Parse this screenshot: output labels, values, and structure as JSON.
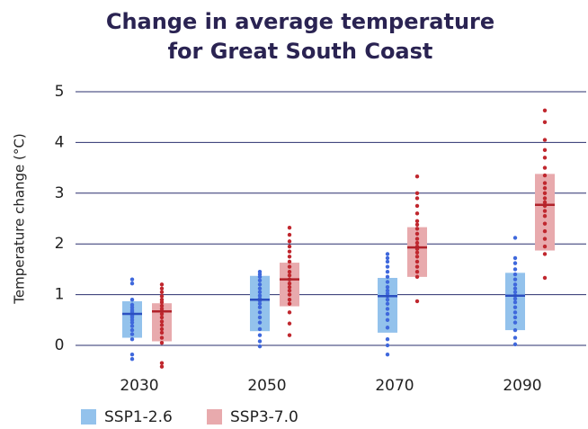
{
  "chart_data": {
    "type": "range",
    "title": "Change in average temperature",
    "subtitle": "for Great South Coast",
    "y_label": "Temperature change (°C)",
    "categories": [
      "2030",
      "2050",
      "2070",
      "2090"
    ],
    "ylim": [
      0,
      5
    ],
    "yticks": [
      0,
      1,
      2,
      3,
      4,
      5
    ],
    "grid": true,
    "legend": "bottom-left",
    "series": [
      {
        "name": "SSP1-2.6",
        "color": "#93c2ec",
        "median_color": "#2b4fc0",
        "point_color": "#3f68dc",
        "low": [
          0.15,
          0.28,
          0.25,
          0.3
        ],
        "high": [
          0.87,
          1.37,
          1.33,
          1.43
        ],
        "median": [
          0.62,
          0.9,
          0.97,
          0.98
        ],
        "points": [
          [
            -0.27,
            -0.18,
            0.12,
            0.22,
            0.3,
            0.38,
            0.45,
            0.5,
            0.55,
            0.58,
            0.6,
            0.62,
            0.64,
            0.67,
            0.7,
            0.75,
            0.8,
            0.9,
            1.22,
            1.3
          ],
          [
            -0.02,
            0.08,
            0.2,
            0.32,
            0.45,
            0.55,
            0.65,
            0.75,
            0.82,
            0.88,
            0.92,
            0.98,
            1.05,
            1.12,
            1.2,
            1.28,
            1.35,
            1.4,
            1.45
          ],
          [
            -0.18,
            0.0,
            0.12,
            0.35,
            0.5,
            0.62,
            0.72,
            0.82,
            0.9,
            0.97,
            1.02,
            1.08,
            1.15,
            1.25,
            1.35,
            1.45,
            1.55,
            1.65,
            1.72,
            1.8
          ],
          [
            0.02,
            0.15,
            0.3,
            0.45,
            0.55,
            0.65,
            0.75,
            0.85,
            0.92,
            0.98,
            1.05,
            1.12,
            1.2,
            1.3,
            1.4,
            1.5,
            1.62,
            1.72,
            2.12
          ]
        ]
      },
      {
        "name": "SSP3-7.0",
        "color": "#e8aaad",
        "median_color": "#b1222a",
        "point_color": "#c0272e",
        "low": [
          0.08,
          0.77,
          1.35,
          1.87
        ],
        "high": [
          0.83,
          1.63,
          2.33,
          3.38
        ],
        "median": [
          0.67,
          1.3,
          1.93,
          2.77
        ],
        "points": [
          [
            -0.42,
            -0.35,
            0.05,
            0.15,
            0.25,
            0.32,
            0.4,
            0.47,
            0.55,
            0.62,
            0.67,
            0.72,
            0.78,
            0.85,
            0.9,
            0.97,
            1.05,
            1.12,
            1.2
          ],
          [
            0.2,
            0.43,
            0.65,
            0.82,
            0.9,
            1.0,
            1.08,
            1.15,
            1.22,
            1.3,
            1.38,
            1.45,
            1.55,
            1.65,
            1.75,
            1.85,
            1.95,
            2.05,
            2.18,
            2.32
          ],
          [
            0.87,
            1.35,
            1.45,
            1.55,
            1.65,
            1.75,
            1.83,
            1.9,
            1.95,
            2.02,
            2.1,
            2.2,
            2.3,
            2.38,
            2.45,
            2.6,
            2.75,
            2.9,
            3.0,
            3.33
          ],
          [
            1.33,
            1.8,
            1.95,
            2.1,
            2.25,
            2.4,
            2.55,
            2.65,
            2.75,
            2.82,
            2.9,
            3.0,
            3.1,
            3.2,
            3.35,
            3.5,
            3.7,
            3.85,
            4.05,
            4.4,
            4.63
          ]
        ]
      }
    ]
  }
}
